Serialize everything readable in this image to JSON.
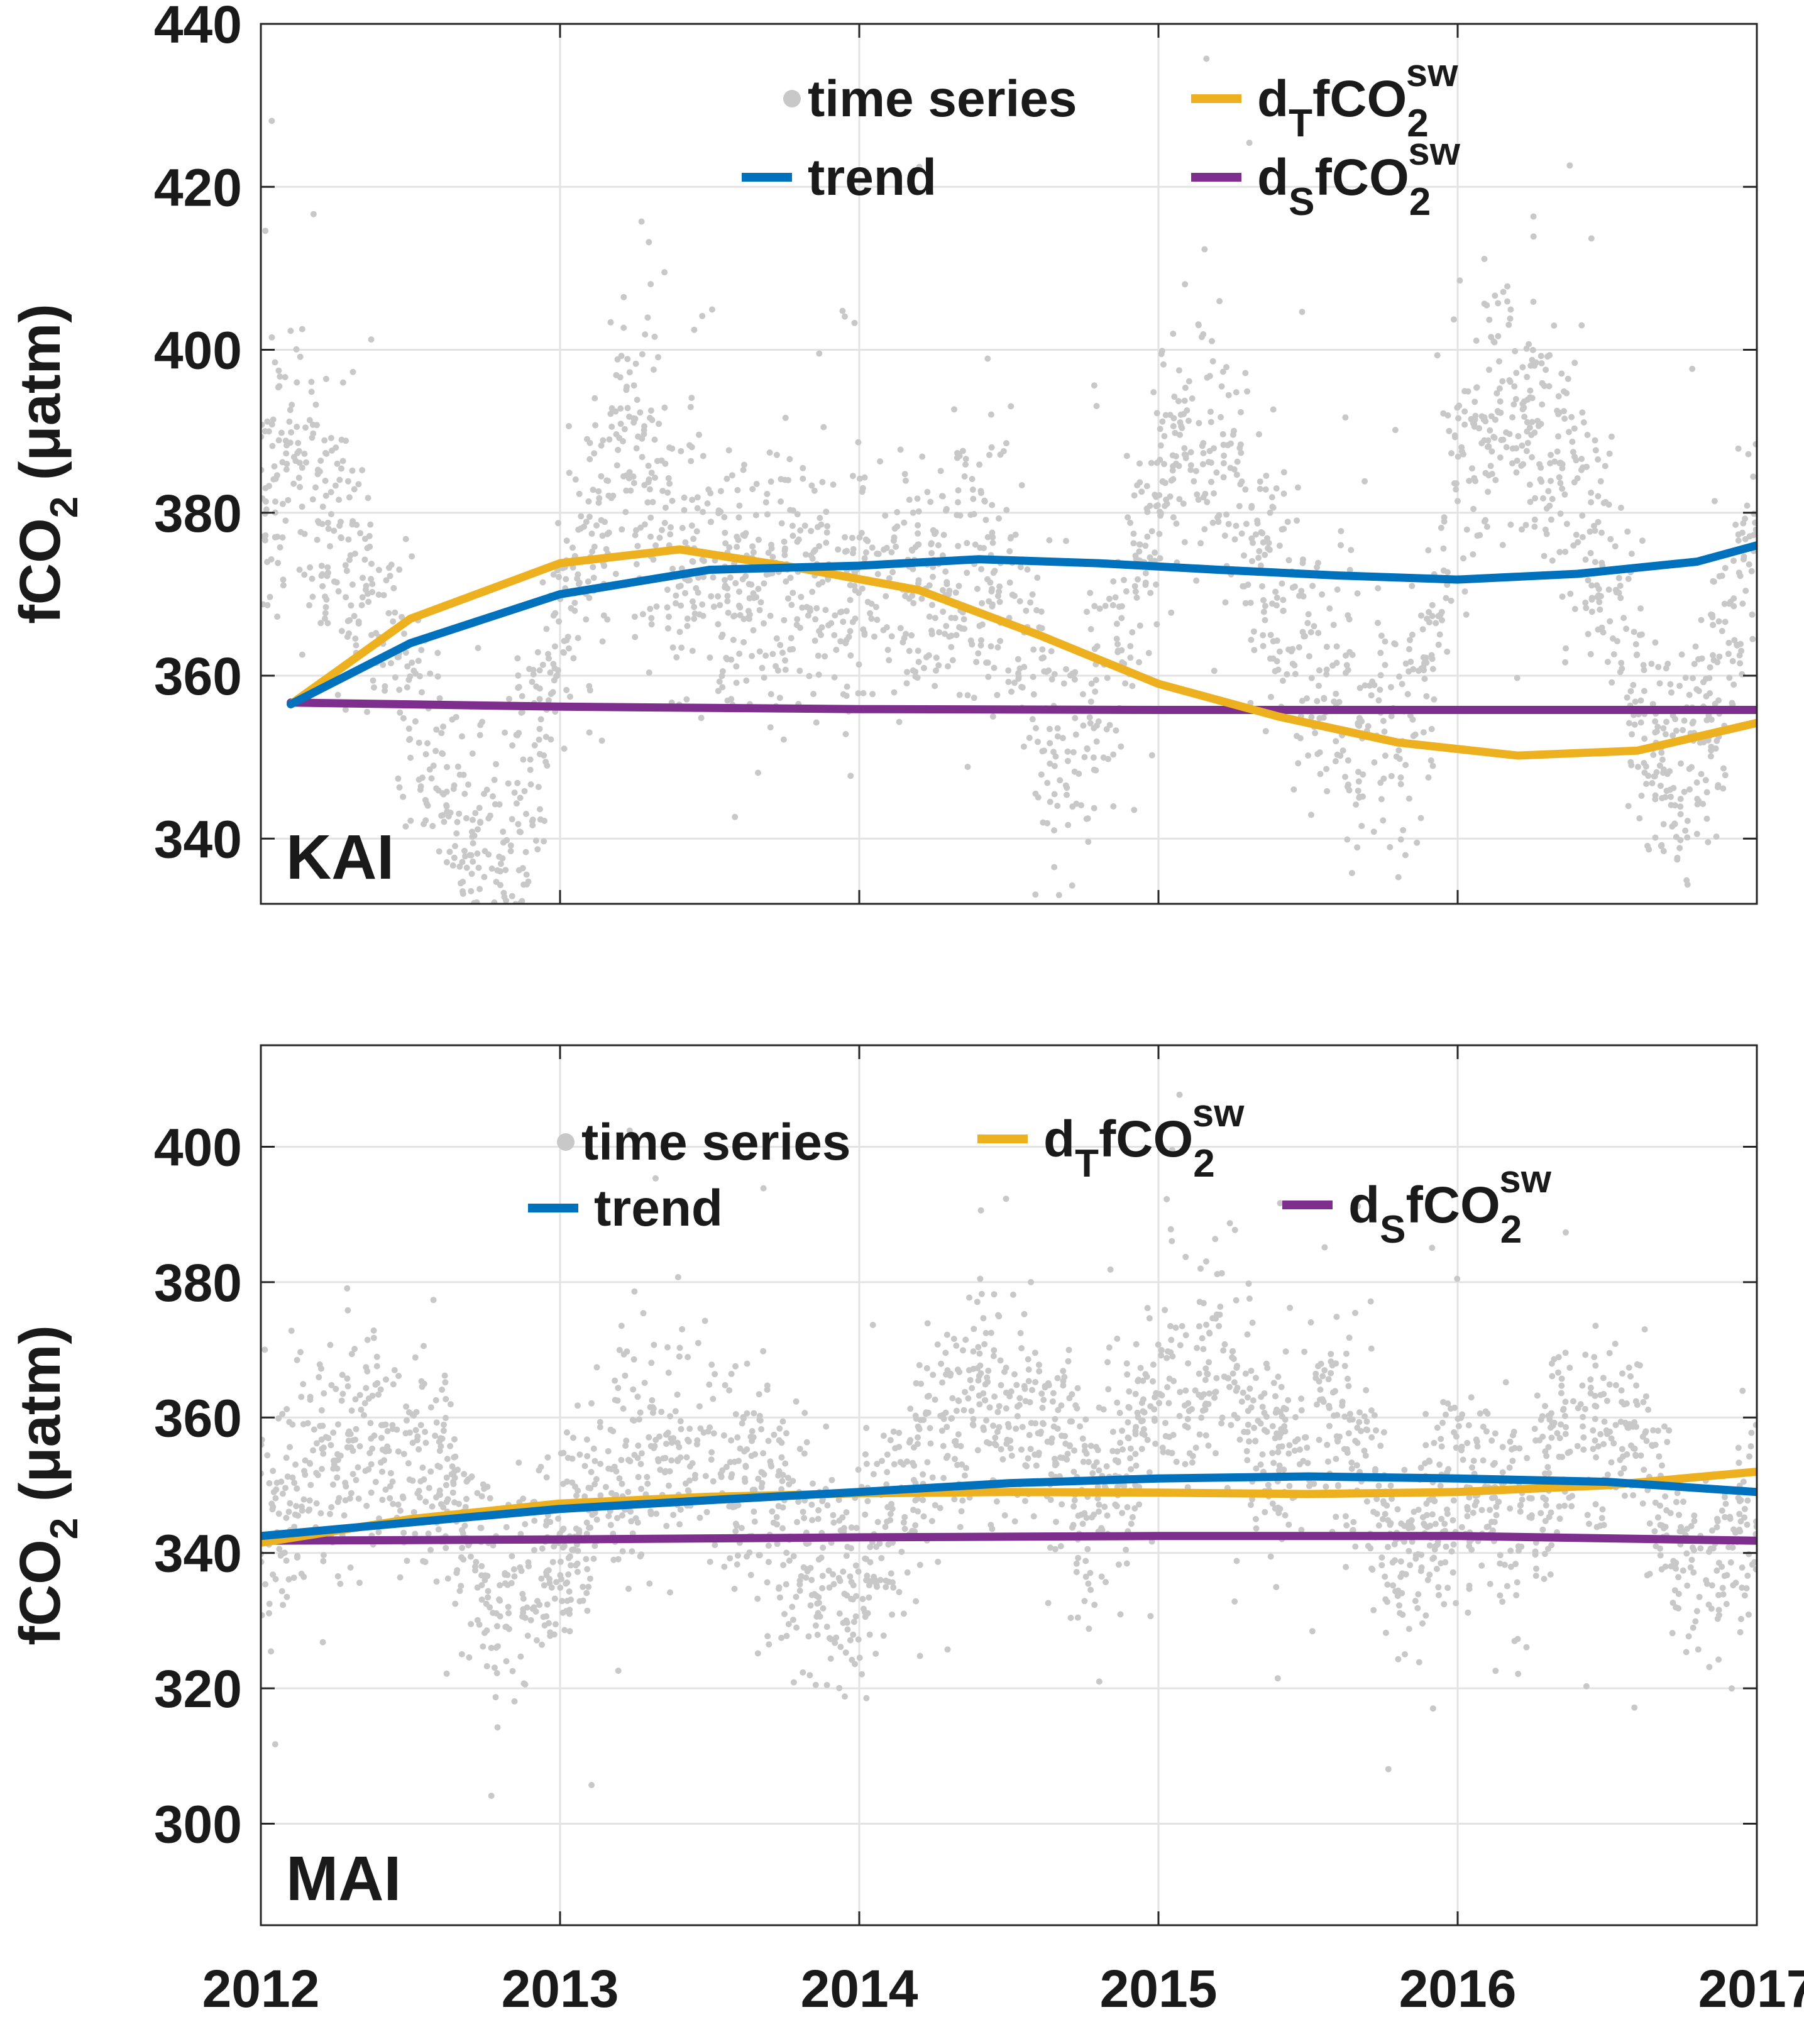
{
  "chart_data": [
    {
      "type": "line",
      "panel_label": "KAI",
      "ylabel_main": "fCO",
      "ylabel_sub": "2",
      "ylabel_unit": "(μatm)",
      "ylim": [
        332,
        440
      ],
      "yticks": [
        340,
        360,
        380,
        400,
        420,
        440
      ],
      "xlim": [
        2012,
        2017
      ],
      "xticks": [
        2012,
        2013,
        2014,
        2015,
        2016,
        2017
      ],
      "show_xtick_labels": false,
      "grid": true,
      "colors": {
        "time_series": "#c8c8c8",
        "trend": "#0072bd",
        "dT": "#edb120",
        "dS": "#7e2f8e"
      },
      "legend": [
        {
          "key": "time_series",
          "marker": "dot",
          "label": "time series"
        },
        {
          "key": "trend",
          "marker": "line",
          "label": "trend"
        },
        {
          "key": "dT",
          "marker": "line",
          "label_main": "d",
          "label_sub1": "T",
          "label_mid": "fCO",
          "label_sub2": "2",
          "label_sup": "sw"
        },
        {
          "key": "dS",
          "marker": "line",
          "label_main": "d",
          "label_sub1": "S",
          "label_mid": "fCO",
          "label_sub2": "2",
          "label_sup": "sw"
        }
      ],
      "series": [
        {
          "key": "trend",
          "x": [
            2012.1,
            2012.5,
            2013.0,
            2013.5,
            2014.0,
            2014.4,
            2014.8,
            2015.2,
            2015.6,
            2016.0,
            2016.4,
            2016.8,
            2017.0
          ],
          "y": [
            356.5,
            364,
            370,
            373,
            373.5,
            374.3,
            373.8,
            373,
            372.3,
            371.8,
            372.5,
            374,
            376
          ]
        },
        {
          "key": "dT",
          "x": [
            2012.1,
            2012.5,
            2013.0,
            2013.4,
            2013.8,
            2014.2,
            2014.6,
            2015.0,
            2015.4,
            2015.8,
            2016.2,
            2016.6,
            2017.0
          ],
          "y": [
            356.5,
            367,
            373.8,
            375.5,
            373.2,
            370.5,
            365,
            359,
            355,
            351.8,
            350.2,
            350.8,
            354.2
          ]
        },
        {
          "key": "dS",
          "x": [
            2012.1,
            2013.0,
            2014.0,
            2015.0,
            2016.0,
            2017.0
          ],
          "y": [
            356.7,
            356.2,
            355.9,
            355.8,
            355.8,
            355.8
          ]
        }
      ],
      "time_series_envelope": {
        "x": [
          2012.0,
          2012.1,
          2012.2,
          2012.35,
          2012.5,
          2012.6,
          2012.7,
          2012.8,
          2012.9,
          2013.0,
          2013.1,
          2013.2,
          2013.3,
          2013.4,
          2014.35,
          2014.45,
          2014.6,
          2014.7,
          2014.8,
          2014.9,
          2015.0,
          2015.1,
          2015.2,
          2015.3,
          2015.4,
          2015.5,
          2015.6,
          2015.7,
          2015.8,
          2015.9,
          2016.0,
          2016.1,
          2016.2,
          2016.3,
          2016.4,
          2016.5,
          2016.6,
          2016.7,
          2016.8,
          2016.9,
          2017.0
        ],
        "y": [
          null,
          385,
          380,
          372,
          358,
          345,
          338,
          336,
          347,
          362,
          378,
          390,
          385,
          372,
          372,
          372,
          360,
          348,
          355,
          368,
          385,
          392,
          388,
          378,
          368,
          360,
          357,
          356,
          352,
          362,
          385,
          392,
          395,
          388,
          385,
          372,
          358,
          348,
          352,
          360,
          382
        ]
      }
    },
    {
      "type": "line",
      "panel_label": "MAI",
      "ylabel_main": "fCO",
      "ylabel_sub": "2",
      "ylabel_unit": "(μatm)",
      "ylim": [
        285,
        415
      ],
      "yticks": [
        300,
        320,
        340,
        360,
        380,
        400
      ],
      "xlim": [
        2012,
        2017
      ],
      "xticks": [
        2012,
        2013,
        2014,
        2015,
        2016,
        2017
      ],
      "show_xtick_labels": true,
      "grid": true,
      "colors": {
        "time_series": "#c8c8c8",
        "trend": "#0072bd",
        "dT": "#edb120",
        "dS": "#7e2f8e"
      },
      "legend": [
        {
          "key": "time_series",
          "marker": "dot",
          "label": "time series"
        },
        {
          "key": "trend",
          "marker": "line",
          "label": "trend"
        },
        {
          "key": "dT",
          "marker": "line",
          "label_main": "d",
          "label_sub1": "T",
          "label_mid": "fCO",
          "label_sub2": "2",
          "label_sup": "sw"
        },
        {
          "key": "dS",
          "marker": "line",
          "label_main": "d",
          "label_sub1": "S",
          "label_mid": "fCO",
          "label_sub2": "2",
          "label_sup": "sw"
        }
      ],
      "series": [
        {
          "key": "trend",
          "x": [
            2012.0,
            2012.5,
            2013.0,
            2013.5,
            2014.0,
            2014.5,
            2015.0,
            2015.5,
            2016.0,
            2016.5,
            2017.0
          ],
          "y": [
            342.5,
            344.5,
            346.5,
            347.8,
            349,
            350.3,
            351,
            351.3,
            351,
            350.5,
            349
          ]
        },
        {
          "key": "dT",
          "x": [
            2012.0,
            2012.5,
            2013.0,
            2013.5,
            2014.0,
            2014.5,
            2015.0,
            2015.5,
            2016.0,
            2016.5,
            2017.0
          ],
          "y": [
            341.5,
            345,
            347.3,
            348.3,
            348.8,
            349,
            348.9,
            348.7,
            349,
            350,
            352
          ]
        },
        {
          "key": "dS",
          "x": [
            2012.0,
            2013.0,
            2014.0,
            2015.0,
            2016.0,
            2017.0
          ],
          "y": [
            341.8,
            342,
            342.3,
            342.5,
            342.5,
            341.8
          ]
        }
      ],
      "time_series_envelope": {
        "x": [
          2012.0,
          2012.2,
          2012.4,
          2012.6,
          2012.8,
          2013.0,
          2013.2,
          2013.4,
          2013.6,
          2013.8,
          2014.0,
          2014.2,
          2014.4,
          2014.6,
          2014.8,
          2015.0,
          2015.2,
          2015.4,
          2015.6,
          2015.8,
          2016.0,
          2016.2,
          2016.4,
          2016.6,
          2016.8,
          2017.0
        ],
        "y": [
          345,
          352,
          357,
          350,
          332,
          340,
          352,
          358,
          352,
          342,
          335,
          355,
          365,
          358,
          348,
          362,
          368,
          355,
          360,
          340,
          350,
          345,
          360,
          355,
          335,
          345
        ]
      }
    }
  ]
}
